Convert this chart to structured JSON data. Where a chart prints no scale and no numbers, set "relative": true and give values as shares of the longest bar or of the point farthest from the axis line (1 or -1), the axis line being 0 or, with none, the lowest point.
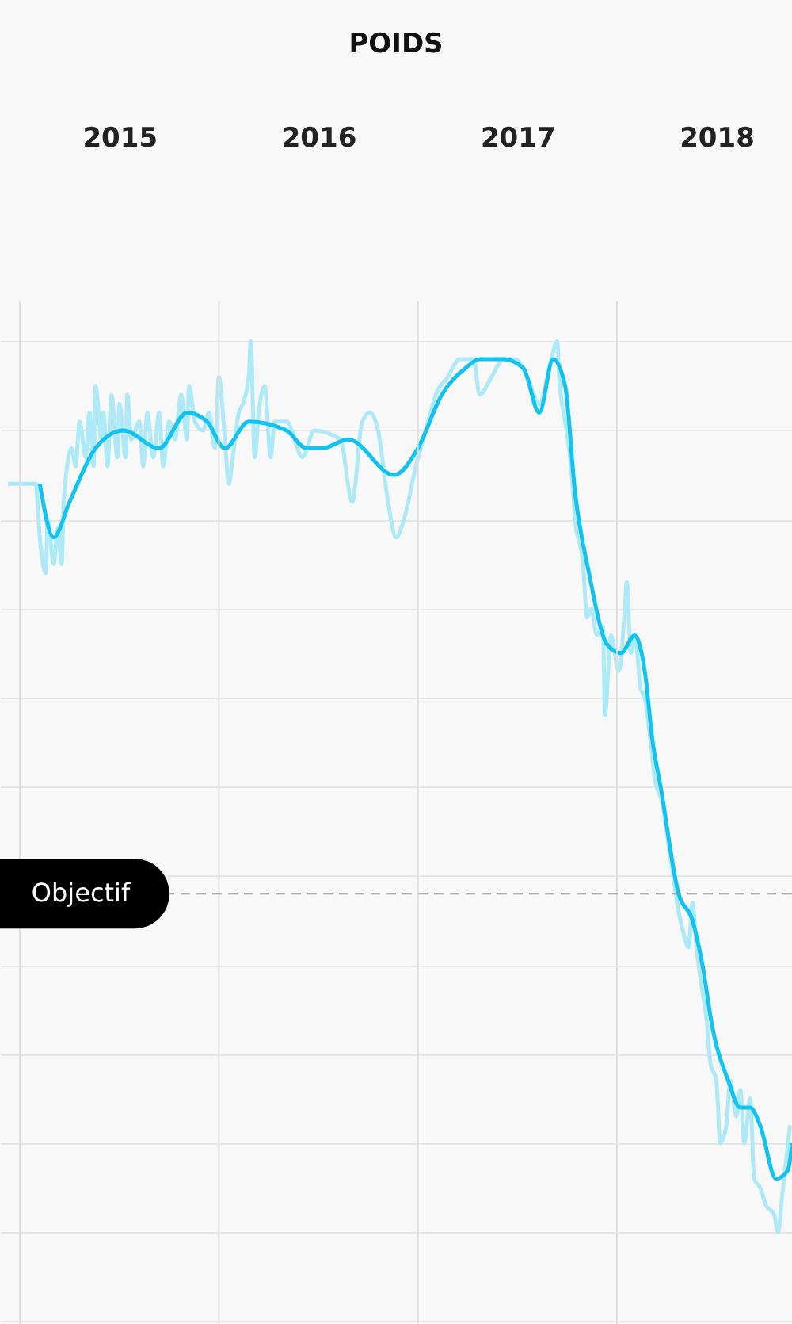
{
  "chart_data": {
    "type": "line",
    "title": "POIDS",
    "relative": true,
    "xlim": [
      2014.9,
      2018.88
    ],
    "xticks": [
      {
        "value": 2015,
        "label": null
      },
      {
        "value": 2015.5,
        "label": "2015"
      },
      {
        "value": 2016,
        "label": null
      },
      {
        "value": 2016.5,
        "label": "2016"
      },
      {
        "value": 2017,
        "label": null
      },
      {
        "value": 2017.5,
        "label": "2017"
      },
      {
        "value": 2018,
        "label": null
      },
      {
        "value": 2018.5,
        "label": "2018"
      }
    ],
    "grid": true,
    "marker": "none",
    "line_style": "solid",
    "ref_lines": [
      {
        "axis": "y",
        "value": 0.38,
        "label": "Objectif",
        "color": "#999999",
        "line_style": "dashed"
      }
    ],
    "series": [
      {
        "color": "#aee9f8",
        "x": [
          2014.94,
          2015.08,
          2015.1,
          2015.13,
          2015.14,
          2015.17,
          2015.19,
          2015.21,
          2015.22,
          2015.26,
          2015.28,
          2015.3,
          2015.33,
          2015.35,
          2015.37,
          2015.38,
          2015.41,
          2015.42,
          2015.44,
          2015.46,
          2015.49,
          2015.5,
          2015.53,
          2015.54,
          2015.56,
          2015.6,
          2015.62,
          2015.64,
          2015.67,
          2015.7,
          2015.72,
          2015.75,
          2015.78,
          2015.81,
          2015.84,
          2015.85,
          2015.88,
          2015.92,
          2015.95,
          2015.98,
          2016.0,
          2016.03,
          2016.05,
          2016.07,
          2016.1,
          2016.12,
          2016.15,
          2016.16,
          2016.18,
          2016.2,
          2016.23,
          2016.26,
          2016.28,
          2016.34,
          2016.42,
          2016.48,
          2016.61,
          2016.67,
          2016.72,
          2016.76,
          2016.8,
          2016.85,
          2016.89,
          2016.93,
          2016.99,
          2017.04,
          2017.09,
          2017.15,
          2017.21,
          2017.28,
          2017.31,
          2017.37,
          2017.43,
          2017.49,
          2017.55,
          2017.61,
          2017.67,
          2017.7,
          2017.71,
          2017.74,
          2017.77,
          2017.79,
          2017.83,
          2017.85,
          2017.87,
          2017.9,
          2017.93,
          2017.94,
          2017.97,
          2018.01,
          2018.04,
          2018.05,
          2018.07,
          2018.09,
          2018.12,
          2018.14,
          2018.17,
          2018.19,
          2018.23,
          2018.25,
          2018.29,
          2018.31,
          2018.33,
          2018.36,
          2018.38,
          2018.4,
          2018.43,
          2018.45,
          2018.47,
          2018.5,
          2018.52,
          2018.55,
          2018.57,
          2018.6,
          2018.62,
          2018.64,
          2018.67,
          2018.69,
          2018.72,
          2018.75,
          2018.79,
          2018.81,
          2018.83,
          2018.86,
          2018.87
        ],
        "values": [
          0.84,
          0.84,
          0.78,
          0.74,
          0.8,
          0.75,
          0.79,
          0.75,
          0.82,
          0.88,
          0.86,
          0.91,
          0.87,
          0.92,
          0.86,
          0.95,
          0.89,
          0.92,
          0.86,
          0.94,
          0.87,
          0.93,
          0.87,
          0.94,
          0.89,
          0.91,
          0.86,
          0.92,
          0.87,
          0.92,
          0.86,
          0.91,
          0.89,
          0.94,
          0.89,
          0.95,
          0.91,
          0.9,
          0.92,
          0.88,
          0.96,
          0.89,
          0.84,
          0.87,
          0.92,
          0.93,
          0.96,
          1.0,
          0.87,
          0.92,
          0.95,
          0.87,
          0.91,
          0.91,
          0.87,
          0.9,
          0.89,
          0.82,
          0.91,
          0.92,
          0.9,
          0.82,
          0.78,
          0.8,
          0.86,
          0.9,
          0.94,
          0.96,
          0.98,
          0.98,
          0.94,
          0.96,
          0.98,
          0.98,
          0.96,
          0.93,
          0.98,
          1.0,
          0.96,
          0.91,
          0.86,
          0.8,
          0.75,
          0.69,
          0.7,
          0.67,
          0.68,
          0.58,
          0.67,
          0.63,
          0.7,
          0.73,
          0.65,
          0.67,
          0.61,
          0.6,
          0.55,
          0.51,
          0.48,
          0.45,
          0.39,
          0.36,
          0.34,
          0.32,
          0.37,
          0.32,
          0.27,
          0.24,
          0.19,
          0.17,
          0.1,
          0.12,
          0.17,
          0.13,
          0.16,
          0.1,
          0.15,
          0.06,
          0.05,
          0.03,
          0.02,
          0.0,
          0.04,
          0.1,
          0.12
        ]
      },
      {
        "color": "#12c2ef",
        "x": [
          2015.1,
          2015.17,
          2015.25,
          2015.38,
          2015.52,
          2015.7,
          2015.84,
          2015.94,
          2016.03,
          2016.15,
          2016.34,
          2016.44,
          2016.52,
          2016.65,
          2016.88,
          2017.0,
          2017.12,
          2017.24,
          2017.31,
          2017.43,
          2017.53,
          2017.61,
          2017.68,
          2017.74,
          2017.79,
          2017.86,
          2017.95,
          2018.02,
          2018.09,
          2018.14,
          2018.18,
          2018.22,
          2018.31,
          2018.38,
          2018.43,
          2018.48,
          2018.56,
          2018.62,
          2018.67,
          2018.72,
          2018.8,
          2018.86,
          2018.88
        ],
        "values": [
          0.84,
          0.78,
          0.82,
          0.88,
          0.9,
          0.88,
          0.92,
          0.91,
          0.88,
          0.91,
          0.9,
          0.88,
          0.88,
          0.89,
          0.85,
          0.88,
          0.94,
          0.97,
          0.98,
          0.98,
          0.97,
          0.92,
          0.98,
          0.95,
          0.83,
          0.74,
          0.66,
          0.65,
          0.67,
          0.63,
          0.55,
          0.5,
          0.38,
          0.35,
          0.3,
          0.23,
          0.17,
          0.14,
          0.14,
          0.12,
          0.06,
          0.07,
          0.1
        ]
      }
    ]
  }
}
